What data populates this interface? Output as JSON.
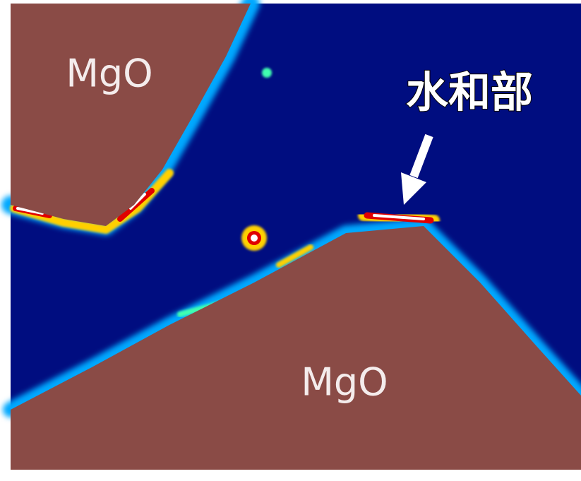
{
  "labels": {
    "top_left": "MgO",
    "bottom": "MgO",
    "annotation": "水和部"
  }
}
